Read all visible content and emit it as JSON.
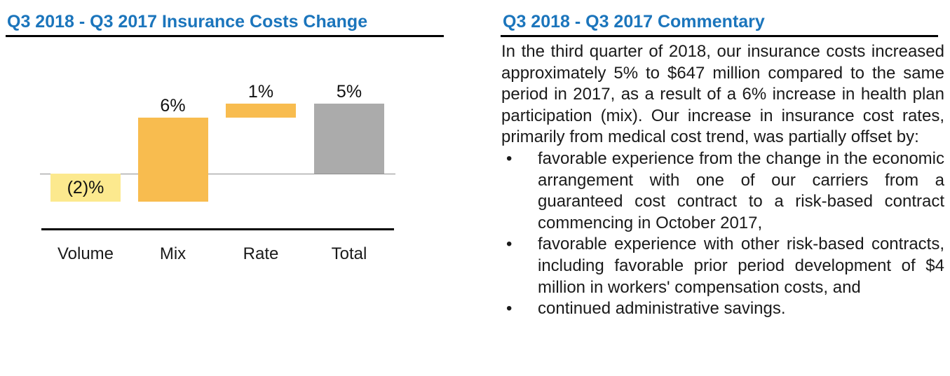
{
  "left": {
    "title": "Q3 2018 - Q3 2017 Insurance Costs Change"
  },
  "right": {
    "title": "Q3 2018 - Q3 2017 Commentary",
    "paragraph": "In the third quarter of 2018, our insurance costs increased approximately 5% to $647 million compared to the same period in 2017, as a result of a 6% increase in health plan participation (mix). Our increase in insurance cost rates, primarily from medical cost trend, was partially offset by:",
    "bullet_marker": "•",
    "bullets": [
      "favorable experience from the change in the economic arrangement with one of our carriers from a guaranteed cost contract to a risk-based contract commencing in October 2017,",
      "favorable experience with other risk-based contracts, including favorable prior period development of $4 million in workers' compensation costs, and",
      "continued administrative savings."
    ]
  },
  "chart_data": {
    "type": "bar",
    "subtype": "waterfall",
    "title": "Q3 2018 - Q3 2017 Insurance Costs Change",
    "categories": [
      "Volume",
      "Mix",
      "Rate",
      "Total"
    ],
    "values": [
      -2,
      6,
      1,
      5
    ],
    "data_labels": [
      "(2)%",
      "6%",
      "1%",
      "5%"
    ],
    "bar_segments": [
      {
        "from": 0,
        "to": -2
      },
      {
        "from": -2,
        "to": 4
      },
      {
        "from": 4,
        "to": 5
      },
      {
        "from": 0,
        "to": 5
      }
    ],
    "bar_colors": [
      "#FCE98E",
      "#F8BC4F",
      "#F8BC4F",
      "#ABABAB"
    ],
    "units": "%",
    "baseline": 0,
    "ylim": [
      -3,
      6.5
    ],
    "grid": false,
    "legend": false,
    "value_axis_labels": false
  },
  "colors": {
    "title_blue": "#1B75BC",
    "rule_black": "#000000",
    "zero_line_gray": "#8f8f8f",
    "body_text": "#1a1a1a"
  }
}
